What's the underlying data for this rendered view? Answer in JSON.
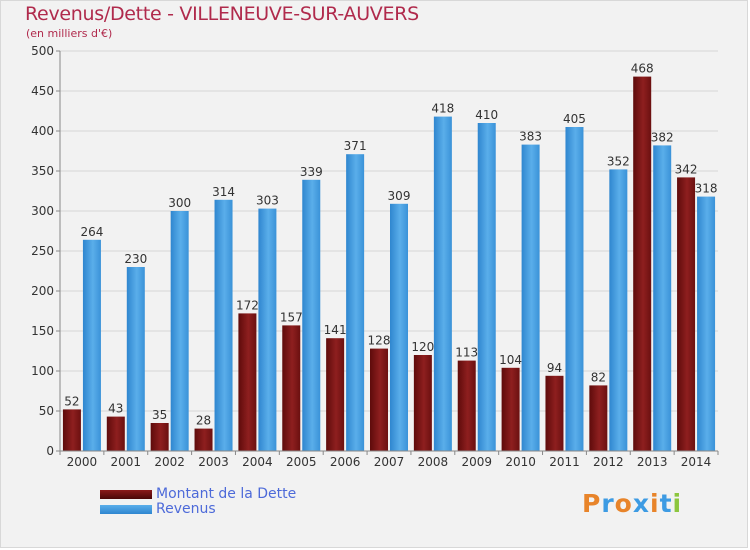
{
  "chart_data": {
    "type": "bar",
    "title": "Revenus/Dette - VILLENEUVE-SUR-AUVERS",
    "subtitle": "(en milliers d'€)",
    "xlabel": "",
    "ylabel": "",
    "ylim": [
      0,
      500
    ],
    "yticks": [
      0,
      50,
      100,
      150,
      200,
      250,
      300,
      350,
      400,
      450,
      500
    ],
    "grid": true,
    "legend_position": "bottom-left",
    "categories": [
      "2000",
      "2001",
      "2002",
      "2003",
      "2004",
      "2005",
      "2006",
      "2007",
      "2008",
      "2009",
      "2010",
      "2011",
      "2012",
      "2013",
      "2014"
    ],
    "series": [
      {
        "name": "Montant de la Dette",
        "color": "#8b1a1a",
        "values": [
          52,
          43,
          35,
          28,
          172,
          157,
          141,
          128,
          120,
          113,
          104,
          94,
          82,
          468,
          342
        ]
      },
      {
        "name": "Revenus",
        "color": "#3d9be3",
        "values": [
          264,
          230,
          300,
          314,
          303,
          339,
          371,
          309,
          418,
          410,
          383,
          405,
          352,
          382,
          318
        ]
      }
    ]
  },
  "logo": {
    "letters": [
      "P",
      "r",
      "o",
      "x",
      "i",
      "t",
      "i"
    ],
    "colors": [
      "#e8842a",
      "#3d9be3",
      "#e8842a",
      "#3d9be3",
      "#e8842a",
      "#3d9be3",
      "#8cc63f"
    ]
  }
}
